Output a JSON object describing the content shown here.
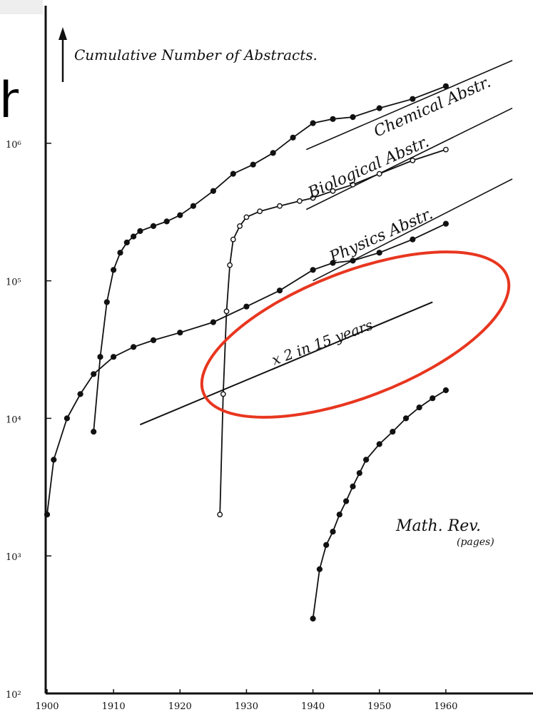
{
  "chart_data": {
    "type": "line",
    "title": "",
    "ylabel": "Cumulative Number of Abstracts.",
    "xlabel": "",
    "x_ticks": [
      "1900",
      "1910",
      "1920",
      "1930",
      "1940",
      "1950",
      "1960"
    ],
    "y_ticks": [
      "10²",
      "10³",
      "10⁴",
      "10⁵",
      "10⁶"
    ],
    "xlim": [
      1900,
      1970
    ],
    "ylim": [
      100,
      10000000
    ],
    "y_scale": "log",
    "grid": false,
    "series": [
      {
        "name": "Chemical Abstr.",
        "marker": "filled",
        "x": [
          1907,
          1908,
          1909,
          1910,
          1911,
          1912,
          1913,
          1914,
          1916,
          1918,
          1920,
          1922,
          1925,
          1928,
          1931,
          1934,
          1937,
          1940,
          1943,
          1946,
          1950,
          1955,
          1960
        ],
        "y": [
          8000,
          28000,
          70000,
          120000,
          160000,
          190000,
          210000,
          230000,
          250000,
          270000,
          300000,
          350000,
          450000,
          600000,
          700000,
          850000,
          1100000,
          1400000,
          1500000,
          1550000,
          1800000,
          2100000,
          2600000
        ]
      },
      {
        "name": "Biological Abstr.",
        "marker": "open",
        "x": [
          1926,
          1926.5,
          1927,
          1927.5,
          1928,
          1929,
          1930,
          1932,
          1935,
          1938,
          1940,
          1943,
          1946,
          1950,
          1955,
          1960
        ],
        "y": [
          2000,
          15000,
          60000,
          130000,
          200000,
          250000,
          290000,
          320000,
          350000,
          380000,
          400000,
          450000,
          500000,
          600000,
          750000,
          900000
        ]
      },
      {
        "name": "Physics Abstr.",
        "marker": "filled",
        "x": [
          1900,
          1901,
          1903,
          1905,
          1907,
          1910,
          1913,
          1916,
          1920,
          1925,
          1930,
          1935,
          1940,
          1943,
          1946,
          1950,
          1955,
          1960
        ],
        "y": [
          2000,
          5000,
          10000,
          15000,
          21000,
          28000,
          33000,
          37000,
          42000,
          50000,
          65000,
          85000,
          120000,
          135000,
          140000,
          160000,
          200000,
          260000
        ]
      },
      {
        "name": "Math. Rev. (pages)",
        "marker": "filled",
        "x": [
          1940,
          1941,
          1942,
          1943,
          1944,
          1945,
          1946,
          1947,
          1948,
          1950,
          1952,
          1954,
          1956,
          1958,
          1960
        ],
        "y": [
          350,
          800,
          1200,
          1500,
          2000,
          2500,
          3200,
          4000,
          5000,
          6500,
          8000,
          10000,
          12000,
          14000,
          16000
        ]
      }
    ],
    "reference_lines": [
      {
        "name": "x 2 in 15 years",
        "x": [
          1914,
          1958
        ],
        "y": [
          9000,
          70000
        ]
      }
    ],
    "annotations": [
      {
        "text": "Chemical Abstr."
      },
      {
        "text": "Biological Abstr."
      },
      {
        "text": "Physics Abstr."
      },
      {
        "text": "x 2 in 15 years"
      },
      {
        "text": "Math. Rev."
      },
      {
        "text": "(pages)"
      }
    ],
    "highlight": {
      "shape": "ellipse",
      "color": "#e8361f",
      "around": "x 2 in 15 years"
    }
  },
  "page_fragment": {
    "text": "h"
  }
}
